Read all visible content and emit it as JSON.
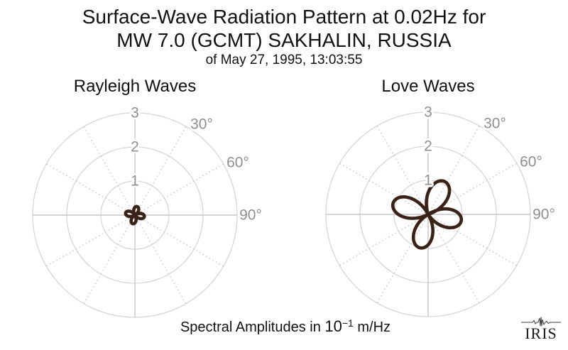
{
  "figure": {
    "title_line1": "Surface-Wave Radiation Pattern at 0.02Hz for",
    "title_line2": "MW 7.0 (GCMT) SAKHALIN, RUSSIA",
    "title_line3": "of May 27, 1995, 13:03:55",
    "caption": {
      "prefix": "Spectral Amplitudes in ",
      "base": "10",
      "exponent": "−1",
      "suffix": " m/Hz"
    },
    "logo_text": "IRIS"
  },
  "style": {
    "curve_color": "#3a2216",
    "curve_width": 4.6,
    "ring_color": "#d6d6d6",
    "solid_spoke_color": "#c6c6c6",
    "dotted_spoke_color": "#c9c9c9",
    "tick_label_color": "#8f8f8f",
    "background": "#ffffff"
  },
  "chart_data": [
    {
      "type": "polar",
      "title": "Rayleigh Waves",
      "r_ticks": [
        "1",
        "2",
        "3"
      ],
      "r_max": 3,
      "amplitude_units": "10^-1 m/Hz",
      "theta_tick_labels": [
        "30°",
        "60°",
        "90°"
      ],
      "theta_tick_angles_deg": [
        30,
        60,
        90
      ],
      "solid_spokes_deg": [
        0,
        90,
        180,
        270
      ],
      "dotted_spokes_deg": [
        30,
        60,
        120,
        150,
        210,
        240,
        300,
        330
      ],
      "series": [
        {
          "name": "Rayleigh-wave radiation pattern",
          "model": "r(theta) = A * |cos(2*(theta - azimuth))| per lobe",
          "lobes": [
            {
              "azimuth_deg": 14,
              "peak_amplitude": 0.26
            },
            {
              "azimuth_deg": 99,
              "peak_amplitude": 0.28
            },
            {
              "azimuth_deg": 194,
              "peak_amplitude": 0.26
            },
            {
              "azimuth_deg": 283,
              "peak_amplitude": 0.28
            }
          ]
        }
      ]
    },
    {
      "type": "polar",
      "title": "Love Waves",
      "r_ticks": [
        "1",
        "2",
        "3"
      ],
      "r_max": 3,
      "amplitude_units": "10^-1 m/Hz",
      "theta_tick_labels": [
        "30°",
        "60°",
        "90°"
      ],
      "theta_tick_angles_deg": [
        30,
        60,
        90
      ],
      "solid_spokes_deg": [
        0,
        90,
        180,
        270
      ],
      "dotted_spokes_deg": [
        30,
        60,
        120,
        150,
        210,
        240,
        300,
        330
      ],
      "series": [
        {
          "name": "Love-wave radiation pattern",
          "model": "r(theta) = A * |cos(2*(theta - azimuth))| per lobe",
          "lobes": [
            {
              "azimuth_deg": 27,
              "peak_amplitude": 1.08
            },
            {
              "azimuth_deg": 101,
              "peak_amplitude": 0.99
            },
            {
              "azimuth_deg": 194,
              "peak_amplitude": 1.01
            },
            {
              "azimuth_deg": 288,
              "peak_amplitude": 1.08
            }
          ]
        }
      ]
    }
  ]
}
